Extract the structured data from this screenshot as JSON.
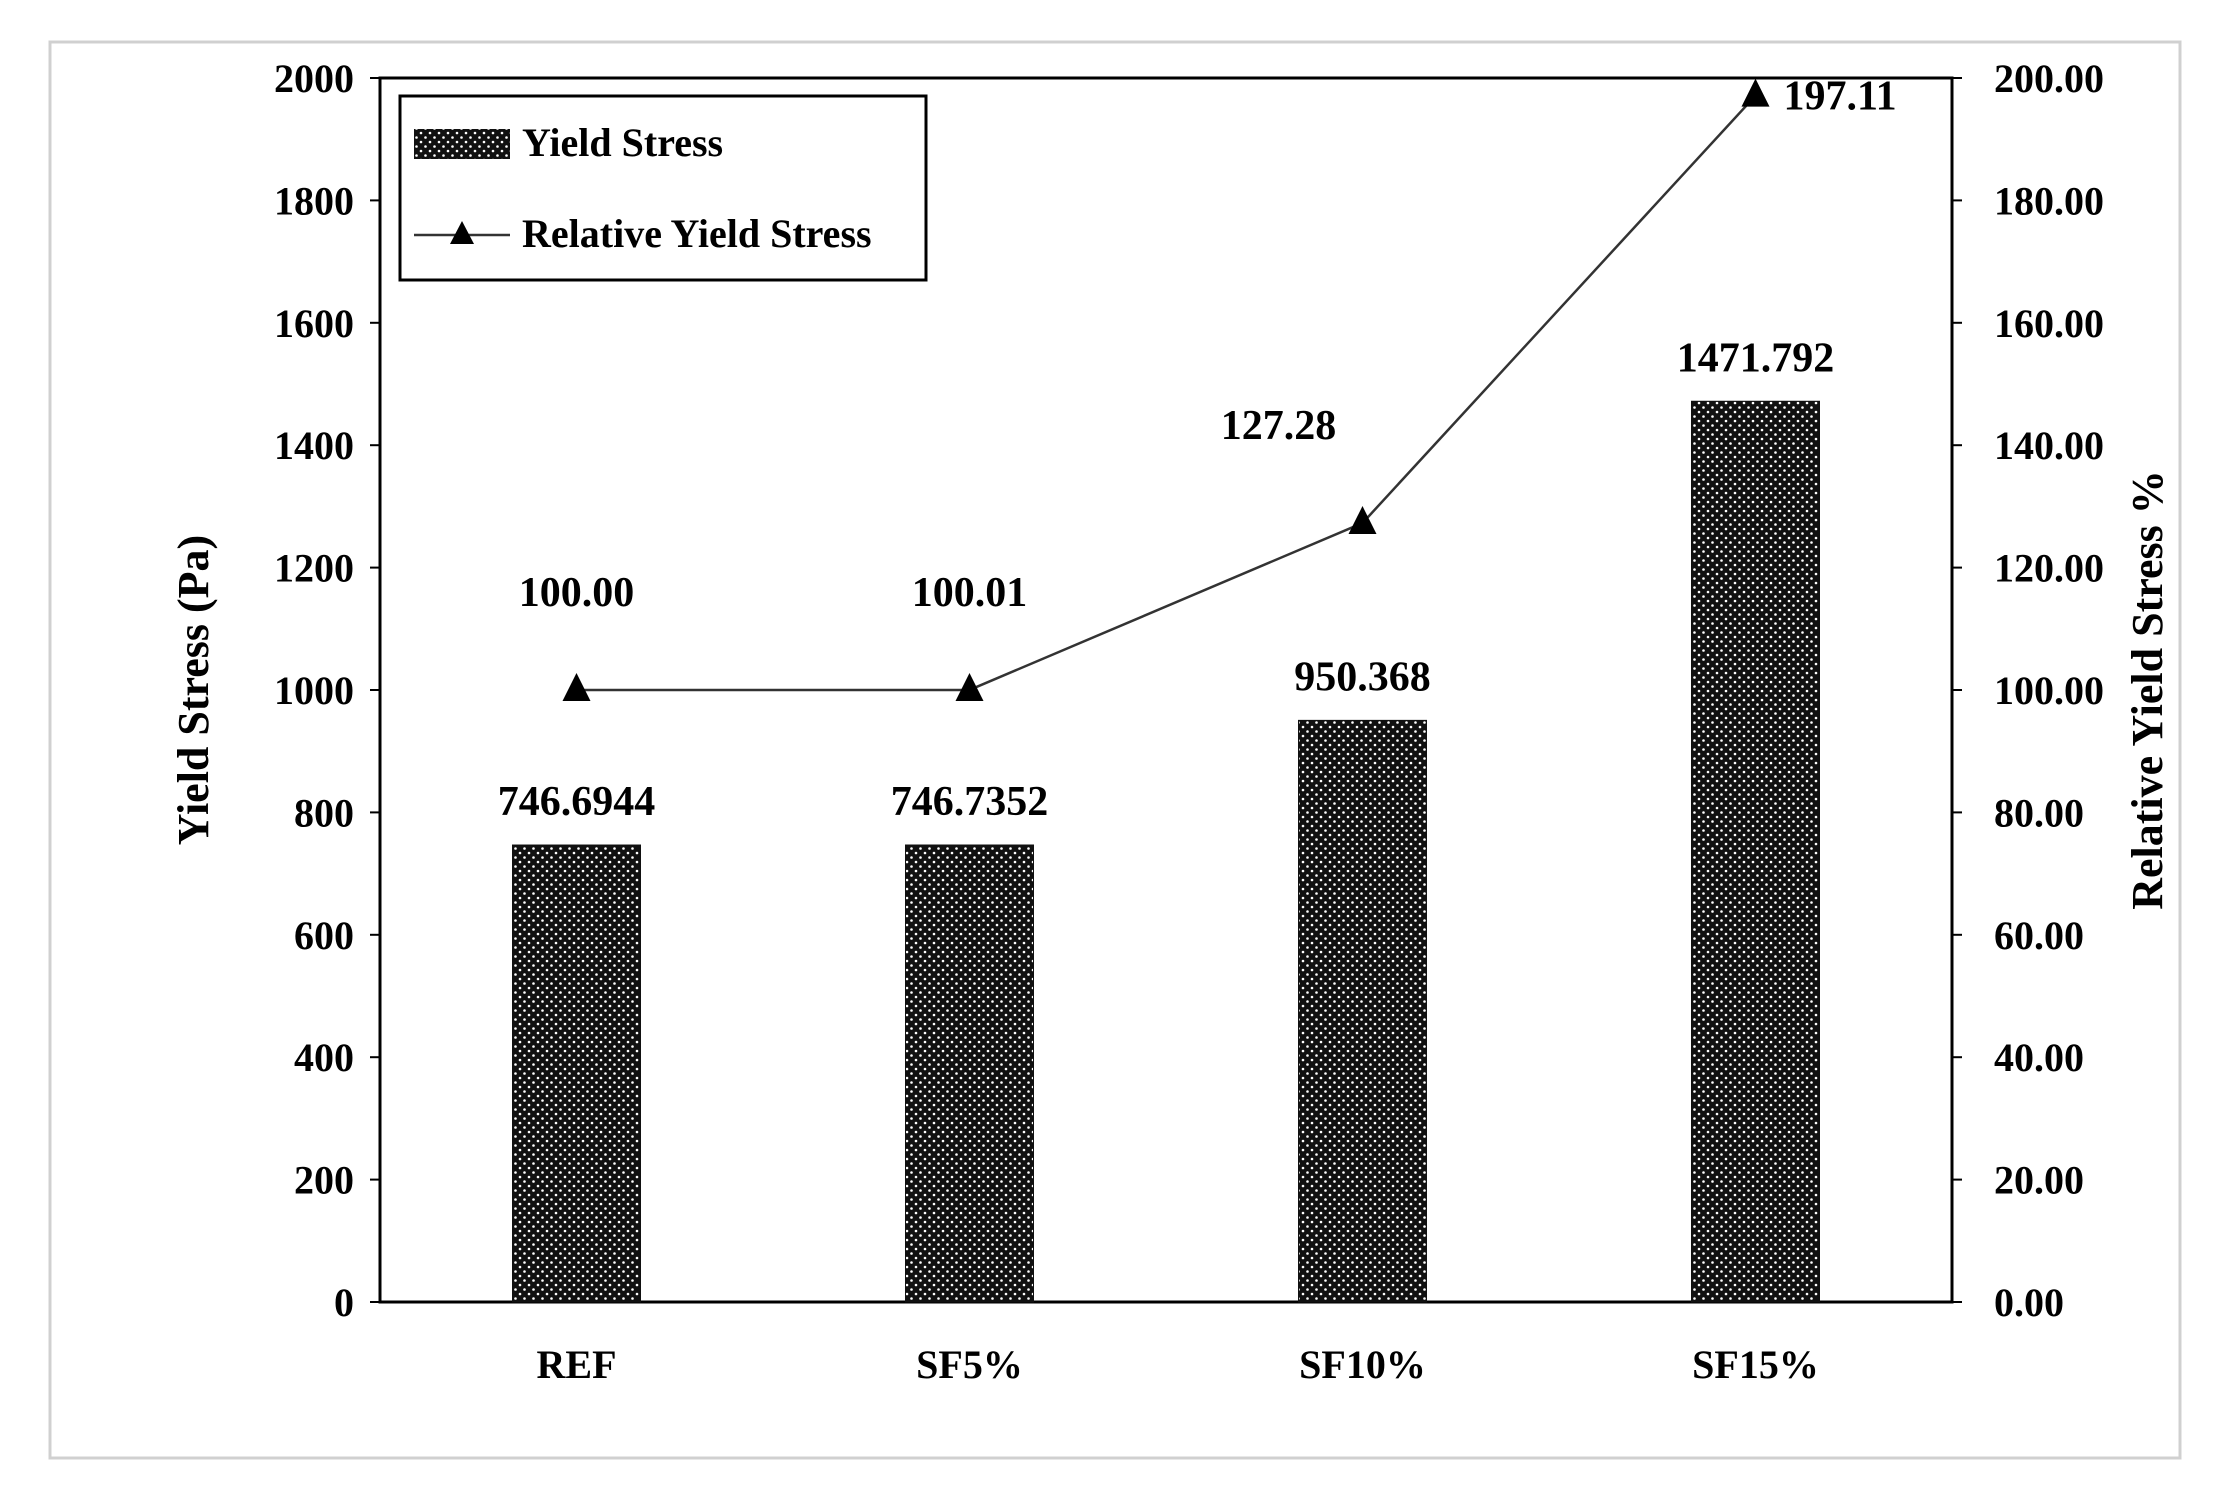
{
  "chart_data": {
    "type": "bar",
    "categories": [
      "REF",
      "SF5%",
      "SF10%",
      "SF15%"
    ],
    "series": [
      {
        "name": "Yield Stress",
        "type": "bar",
        "axis": "left",
        "values": [
          746.6944,
          746.7352,
          950.368,
          1471.792
        ],
        "labels": [
          "746.6944",
          "746.7352",
          "950.368",
          "1471.792"
        ]
      },
      {
        "name": "Relative Yield Stress",
        "type": "line",
        "axis": "right",
        "marker": "triangle",
        "values": [
          100.0,
          100.01,
          127.28,
          197.11
        ],
        "labels": [
          "100.00",
          "100.01",
          "127.28",
          "197.11"
        ]
      }
    ],
    "ylabel": "Yield Stress (Pa)",
    "y2label": "Relative Yield Stress %",
    "ylim": [
      0,
      2000
    ],
    "y2lim": [
      0,
      200
    ],
    "yticks": [
      "0",
      "200",
      "400",
      "600",
      "800",
      "1000",
      "1200",
      "1400",
      "1600",
      "1800",
      "2000"
    ],
    "y2ticks": [
      "0.00",
      "20.00",
      "40.00",
      "60.00",
      "80.00",
      "100.00",
      "120.00",
      "140.00",
      "160.00",
      "180.00",
      "200.00"
    ],
    "legend_position": "top-left",
    "grid": false,
    "colors": {
      "bar_fill": "#111111",
      "bar_dots": "#ffffff",
      "line": "#333333",
      "marker": "#000000"
    }
  }
}
